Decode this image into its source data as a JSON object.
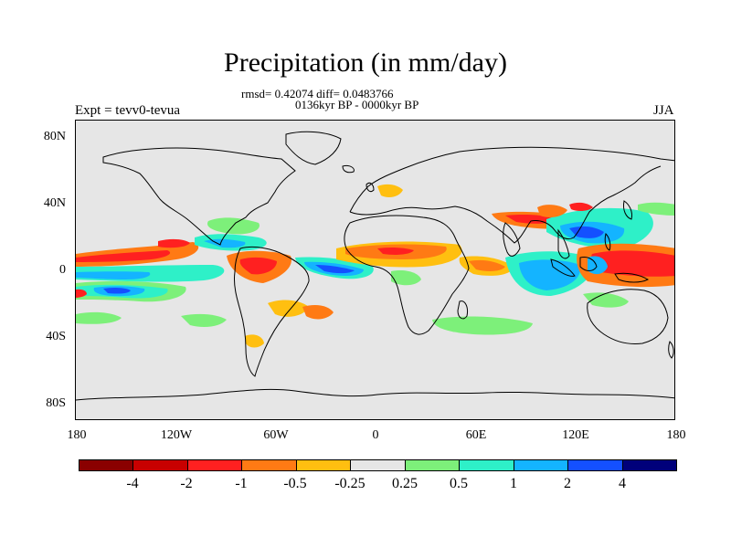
{
  "title": "Precipitation (in mm/day)",
  "stats_line": "rmsd= 0.42074 diff= 0.0483766",
  "period_line": "0136kyr BP - 0000kyr BP",
  "experiment": "Expt = tevv0-tevua",
  "season": "JJA",
  "map": {
    "projection": "cylindrical equidistant",
    "lat_ticks": [
      "80N",
      "40N",
      "0",
      "40S",
      "80S"
    ],
    "lon_ticks": [
      "180",
      "120W",
      "60W",
      "0",
      "60E",
      "120E",
      "180"
    ],
    "background_color": "#e6e6e6",
    "coastline_color": "#000000"
  },
  "colorbar": {
    "colors": [
      "#8a0000",
      "#c80000",
      "#ff2020",
      "#ff7a14",
      "#ffbf10",
      "#e6e6e6",
      "#7df07a",
      "#2ef0c8",
      "#14b4ff",
      "#1450ff",
      "#00007a"
    ],
    "labels": [
      "-4",
      "-2",
      "-1",
      "-0.5",
      "-0.25",
      "0.25",
      "0.5",
      "1",
      "2",
      "4"
    ]
  }
}
